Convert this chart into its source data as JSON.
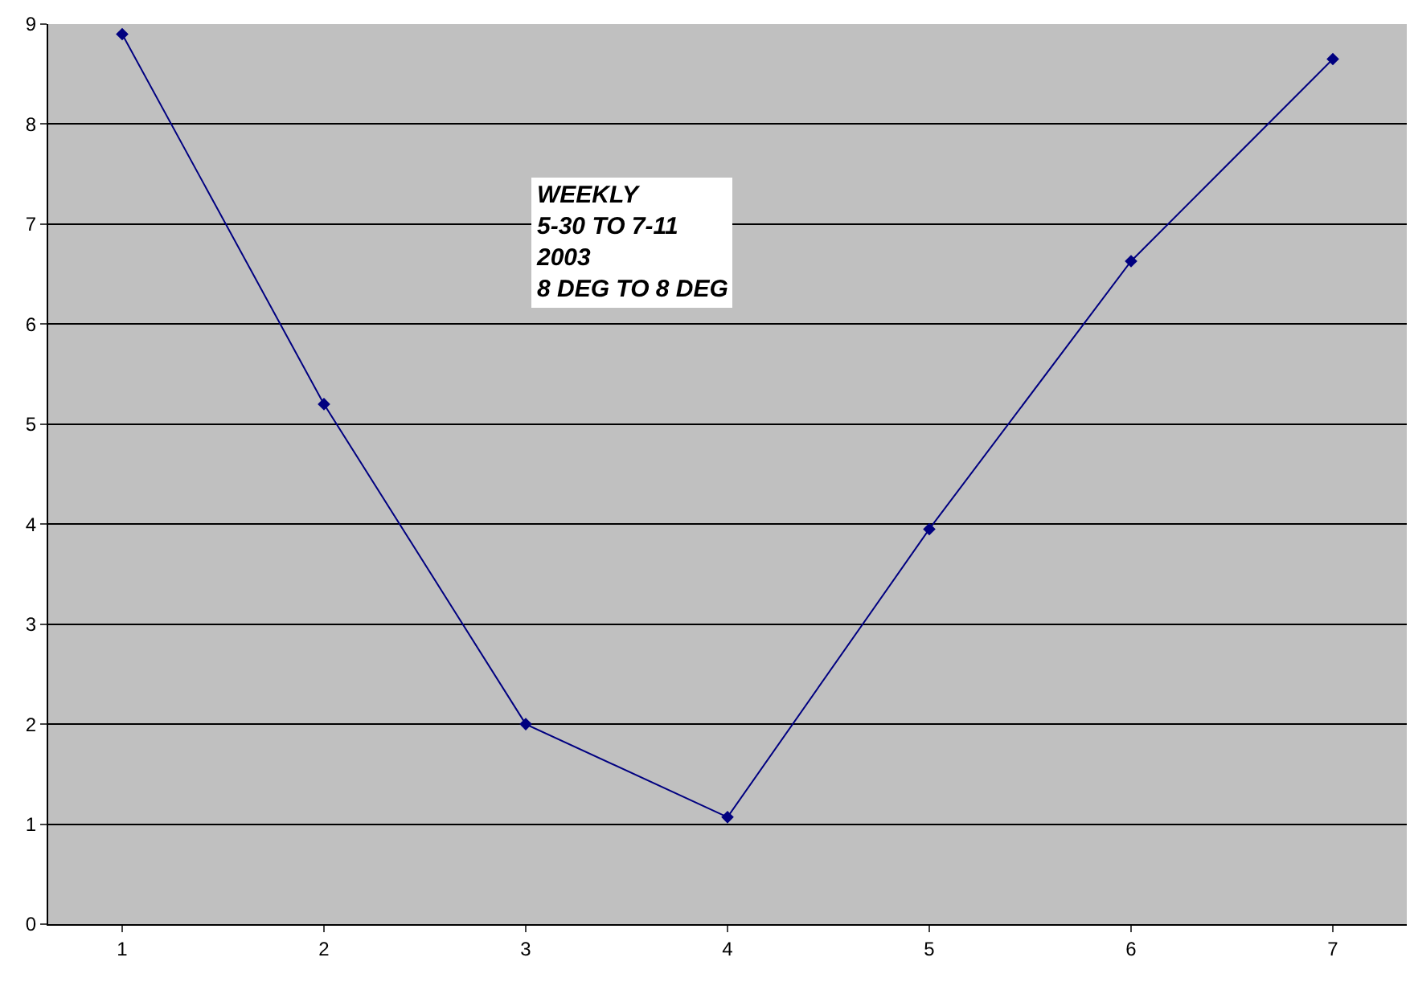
{
  "chart_data": {
    "type": "line",
    "categories": [
      "1",
      "2",
      "3",
      "4",
      "5",
      "6",
      "7"
    ],
    "series": [
      {
        "color": "#000080",
        "values": [
          8.9,
          5.2,
          2.0,
          1.07,
          3.95,
          6.63,
          8.65
        ]
      }
    ],
    "ylim": [
      0,
      9
    ],
    "yticks": [
      0,
      1,
      2,
      3,
      4,
      5,
      6,
      7,
      8,
      9
    ],
    "grid": "y",
    "legend": false,
    "marker": "diamond",
    "line_style": "solid",
    "annotations": [
      "WEEKLY\n5-30 TO 7-11\n2003\n8 DEG TO 8 DEG"
    ]
  }
}
